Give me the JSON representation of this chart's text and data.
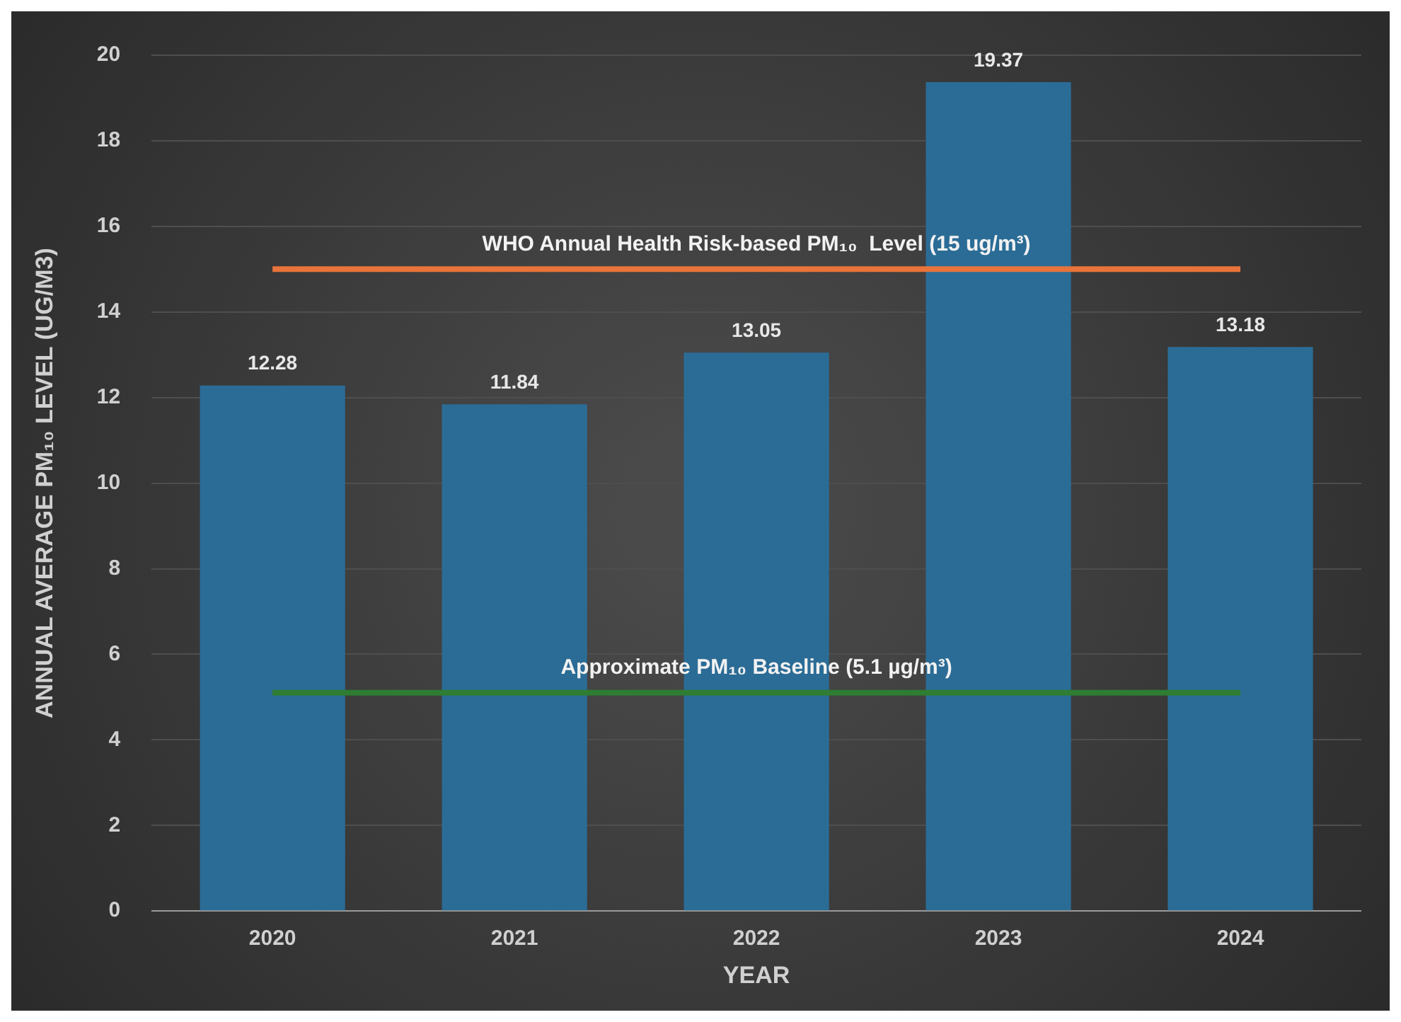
{
  "chart_data": {
    "type": "bar",
    "xlabel": "YEAR",
    "ylabel": "ANNUAL AVERAGE PM₁₀ LEVEL (UG/M3)",
    "categories": [
      "2020",
      "2021",
      "2022",
      "2023",
      "2024"
    ],
    "values": [
      12.28,
      11.84,
      13.05,
      19.37,
      13.18
    ],
    "color": "#2b6c96",
    "ylim": [
      0,
      20
    ],
    "yticks": [
      0,
      2,
      4,
      6,
      8,
      10,
      12,
      14,
      16,
      18,
      20
    ],
    "grid": "y",
    "legend": false,
    "data_labels": true,
    "ref_lines": [
      {
        "axis": "y",
        "value": 15,
        "label": "WHO Annual Health Risk-based PM₁₀  Level (15 ug/m³)",
        "color": "#e8743b"
      },
      {
        "axis": "y",
        "value": 5.1,
        "label": "Approximate PM₁₀ Baseline (5.1 µg/m³)",
        "color": "#2e7d32"
      }
    ]
  }
}
